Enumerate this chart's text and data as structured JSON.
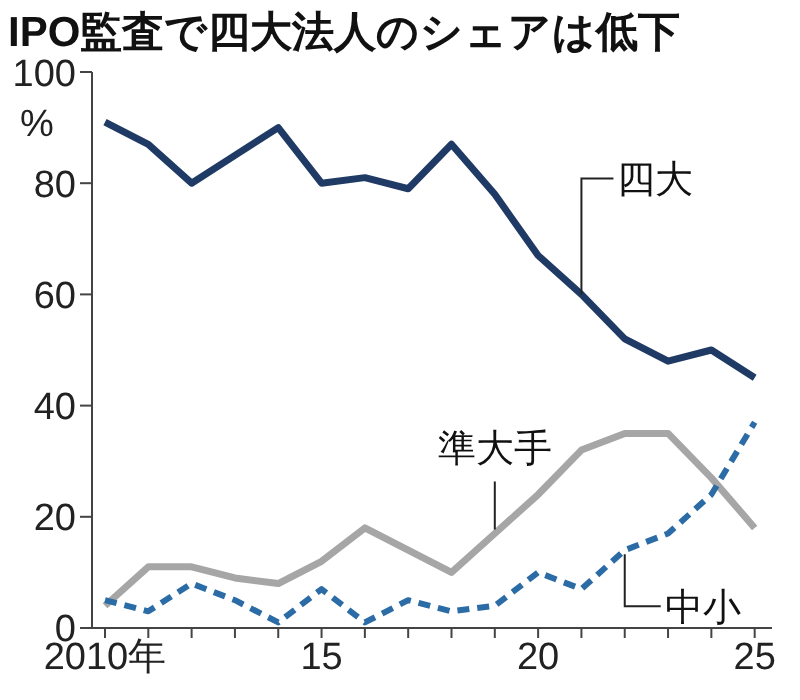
{
  "chart_data": {
    "type": "line",
    "title": "IPO監査で四大法人のシェアは低下",
    "ylabel": "%",
    "x": [
      2010,
      2011,
      2012,
      2013,
      2014,
      2015,
      2016,
      2017,
      2018,
      2019,
      2020,
      2021,
      2022,
      2023,
      2024,
      2025
    ],
    "series": [
      {
        "name": "四大",
        "color": "#1f3a64",
        "line_style": "solid",
        "values": [
          91,
          87,
          80,
          85,
          90,
          80,
          81,
          79,
          87,
          78,
          67,
          60,
          52,
          48,
          50,
          45
        ]
      },
      {
        "name": "準大手",
        "color": "#a6a6a6",
        "line_style": "solid",
        "values": [
          4,
          11,
          11,
          9,
          8,
          12,
          18,
          14,
          10,
          17,
          24,
          32,
          35,
          35,
          27,
          18
        ]
      },
      {
        "name": "中小",
        "color": "#2c6ca6",
        "line_style": "dashed",
        "values": [
          5,
          3,
          8,
          5,
          1,
          7,
          1,
          5,
          3,
          4,
          10,
          7,
          14,
          17,
          24,
          37
        ]
      }
    ],
    "xlim": [
      2009.7,
      2025.4
    ],
    "xticks": [
      {
        "value": 2010,
        "label": "2010年"
      },
      {
        "value": 2011,
        "label": null
      },
      {
        "value": 2012,
        "label": null
      },
      {
        "value": 2013,
        "label": null
      },
      {
        "value": 2014,
        "label": null
      },
      {
        "value": 2015,
        "label": "15"
      },
      {
        "value": 2016,
        "label": null
      },
      {
        "value": 2017,
        "label": null
      },
      {
        "value": 2018,
        "label": null
      },
      {
        "value": 2019,
        "label": null
      },
      {
        "value": 2020,
        "label": "20"
      },
      {
        "value": 2021,
        "label": null
      },
      {
        "value": 2022,
        "label": null
      },
      {
        "value": 2023,
        "label": null
      },
      {
        "value": 2024,
        "label": null
      },
      {
        "value": 2025,
        "label": "25"
      }
    ],
    "ylim": [
      0,
      100
    ],
    "yticks": [
      0,
      20,
      40,
      60,
      80,
      100
    ],
    "grid": false,
    "legend": false,
    "marker": "none"
  }
}
